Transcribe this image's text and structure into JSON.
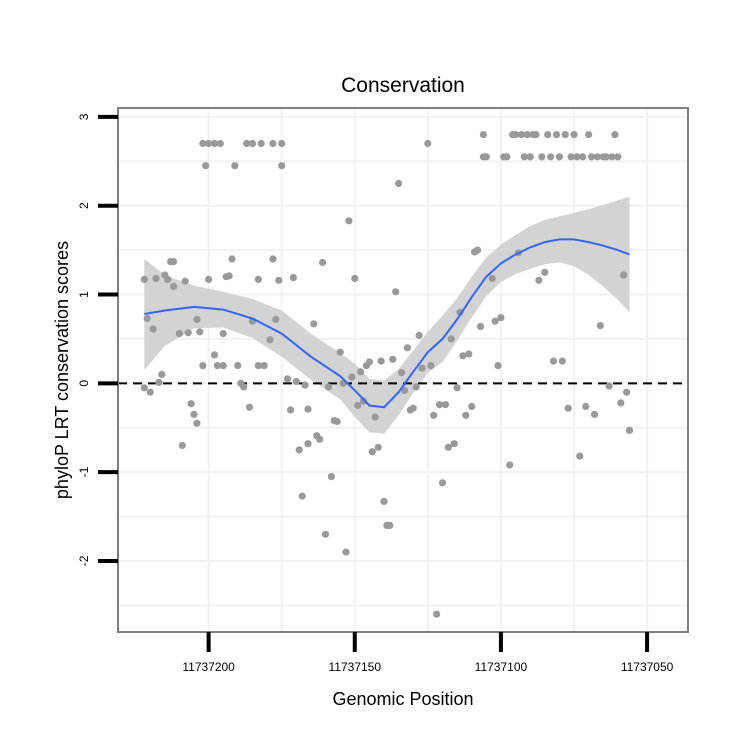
{
  "chart_data": {
    "type": "scatter",
    "title": "Conservation",
    "xlabel": "Genomic Position",
    "ylabel": "phyloP LRT conservation scores",
    "xlim": [
      11737231,
      11737036
    ],
    "ylim": [
      -2.8,
      3.1
    ],
    "x_reversed": true,
    "x_ticks": [
      11737200,
      11737150,
      11737100,
      11737050
    ],
    "x_tick_labels": [
      "11737200",
      "11737150",
      "11737100",
      "11737050"
    ],
    "y_ticks": [
      -2,
      -1,
      0,
      1,
      2,
      3
    ],
    "y_tick_labels": [
      "-2",
      "-1",
      "0",
      "1",
      "2",
      "3"
    ],
    "grid": true,
    "reference_line": {
      "y": 0,
      "style": "dashed"
    },
    "colors": {
      "points": "#999999",
      "smooth": "#3366ff",
      "band": "#d3d3d3",
      "grid": "#f2f2f2",
      "border": "#7f7f7f",
      "refline": "#000000"
    },
    "series": [
      {
        "type": "scatter",
        "points": [
          [
            11737222,
            -0.05
          ],
          [
            11737222,
            1.17
          ],
          [
            11737221,
            0.73
          ],
          [
            11737220,
            -0.1
          ],
          [
            11737219,
            0.61
          ],
          [
            11737218,
            1.18
          ],
          [
            11737217,
            0.01
          ],
          [
            11737216,
            0.1
          ],
          [
            11737215,
            1.22
          ],
          [
            11737214,
            1.17
          ],
          [
            11737213,
            1.37
          ],
          [
            11737212,
            1.37
          ],
          [
            11737212,
            1.09
          ],
          [
            11737210,
            0.56
          ],
          [
            11737209,
            -0.7
          ],
          [
            11737208,
            1.15
          ],
          [
            11737207,
            0.57
          ],
          [
            11737206,
            -0.23
          ],
          [
            11737205,
            -0.35
          ],
          [
            11737204,
            -0.45
          ],
          [
            11737204,
            0.72
          ],
          [
            11737203,
            0.58
          ],
          [
            11737202,
            0.2
          ],
          [
            11737202,
            2.7
          ],
          [
            11737201,
            2.45
          ],
          [
            11737200,
            2.7
          ],
          [
            11737200,
            1.17
          ],
          [
            11737198,
            2.7
          ],
          [
            11737198,
            0.32
          ],
          [
            11737197,
            0.2
          ],
          [
            11737196,
            2.7
          ],
          [
            11737195,
            0.56
          ],
          [
            11737195,
            0.2
          ],
          [
            11737194,
            1.2
          ],
          [
            11737193,
            1.21
          ],
          [
            11737192,
            1.4
          ],
          [
            11737191,
            2.45
          ],
          [
            11737190,
            0.2
          ],
          [
            11737189,
            0.0
          ],
          [
            11737188,
            -0.04
          ],
          [
            11737187,
            2.7
          ],
          [
            11737186,
            -0.27
          ],
          [
            11737185,
            0.7
          ],
          [
            11737185,
            2.7
          ],
          [
            11737183,
            1.17
          ],
          [
            11737183,
            0.2
          ],
          [
            11737182,
            2.7
          ],
          [
            11737181,
            0.2
          ],
          [
            11737179,
            0.49
          ],
          [
            11737178,
            1.4
          ],
          [
            11737178,
            2.7
          ],
          [
            11737177,
            0.72
          ],
          [
            11737176,
            1.16
          ],
          [
            11737175,
            2.45
          ],
          [
            11737175,
            2.7
          ],
          [
            11737173,
            0.05
          ],
          [
            11737172,
            -0.3
          ],
          [
            11737171,
            1.19
          ],
          [
            11737170,
            0.02
          ],
          [
            11737169,
            -0.75
          ],
          [
            11737168,
            -1.27
          ],
          [
            11737167,
            -0.02
          ],
          [
            11737166,
            -0.68
          ],
          [
            11737166,
            -0.29
          ],
          [
            11737164,
            0.67
          ],
          [
            11737163,
            -0.59
          ],
          [
            11737162,
            -0.63
          ],
          [
            11737161,
            1.36
          ],
          [
            11737160,
            -1.7
          ],
          [
            11737159,
            -0.04
          ],
          [
            11737158,
            -1.05
          ],
          [
            11737157,
            -0.42
          ],
          [
            11737156,
            -0.43
          ],
          [
            11737155,
            0.35
          ],
          [
            11737154,
            0.0
          ],
          [
            11737153,
            -1.9
          ],
          [
            11737152,
            1.83
          ],
          [
            11737151,
            0.07
          ],
          [
            11737150,
            1.18
          ],
          [
            11737149,
            -0.25
          ],
          [
            11737148,
            0.13
          ],
          [
            11737147,
            -0.2
          ],
          [
            11737146,
            0.2
          ],
          [
            11737145,
            0.24
          ],
          [
            11737144,
            -0.77
          ],
          [
            11737143,
            -0.38
          ],
          [
            11737142,
            -0.72
          ],
          [
            11737141,
            0.25
          ],
          [
            11737140,
            -1.33
          ],
          [
            11737139,
            -1.6
          ],
          [
            11737138,
            -1.6
          ],
          [
            11737137,
            0.27
          ],
          [
            11737136,
            1.03
          ],
          [
            11737135,
            2.25
          ],
          [
            11737134,
            0.12
          ],
          [
            11737133,
            -0.08
          ],
          [
            11737132,
            0.4
          ],
          [
            11737131,
            -0.3
          ],
          [
            11737130,
            -0.28
          ],
          [
            11737129,
            -0.04
          ],
          [
            11737128,
            0.54
          ],
          [
            11737127,
            0.17
          ],
          [
            11737125,
            2.7
          ],
          [
            11737124,
            0.2
          ],
          [
            11737123,
            -0.36
          ],
          [
            11737122,
            -2.6
          ],
          [
            11737121,
            -0.24
          ],
          [
            11737120,
            -1.12
          ],
          [
            11737119,
            -0.24
          ],
          [
            11737118,
            -0.72
          ],
          [
            11737117,
            0.5
          ],
          [
            11737116,
            -0.68
          ],
          [
            11737115,
            -0.05
          ],
          [
            11737114,
            0.8
          ],
          [
            11737113,
            0.31
          ],
          [
            11737112,
            -0.36
          ],
          [
            11737111,
            0.33
          ],
          [
            11737110,
            -0.26
          ],
          [
            11737109,
            1.48
          ],
          [
            11737108,
            1.5
          ],
          [
            11737107,
            0.64
          ],
          [
            11737106,
            2.8
          ],
          [
            11737106,
            2.55
          ],
          [
            11737105,
            2.55
          ],
          [
            11737103,
            1.18
          ],
          [
            11737102,
            0.7
          ],
          [
            11737101,
            0.2
          ],
          [
            11737100,
            0.74
          ],
          [
            11737099,
            2.55
          ],
          [
            11737098,
            2.55
          ],
          [
            11737097,
            -0.92
          ],
          [
            11737096,
            2.8
          ],
          [
            11737095,
            2.8
          ],
          [
            11737094,
            1.47
          ],
          [
            11737093,
            2.8
          ],
          [
            11737092,
            2.55
          ],
          [
            11737091,
            2.8
          ],
          [
            11737090,
            2.55
          ],
          [
            11737089,
            2.8
          ],
          [
            11737088,
            2.8
          ],
          [
            11737087,
            1.16
          ],
          [
            11737086,
            2.55
          ],
          [
            11737085,
            1.25
          ],
          [
            11737084,
            2.8
          ],
          [
            11737083,
            2.55
          ],
          [
            11737082,
            0.25
          ],
          [
            11737081,
            2.8
          ],
          [
            11737080,
            2.55
          ],
          [
            11737079,
            0.25
          ],
          [
            11737078,
            2.8
          ],
          [
            11737077,
            -0.28
          ],
          [
            11737076,
            2.55
          ],
          [
            11737075,
            2.8
          ],
          [
            11737074,
            2.55
          ],
          [
            11737073,
            -0.82
          ],
          [
            11737072,
            2.55
          ],
          [
            11737071,
            -0.26
          ],
          [
            11737070,
            2.8
          ],
          [
            11737069,
            2.55
          ],
          [
            11737068,
            -0.35
          ],
          [
            11737067,
            2.55
          ],
          [
            11737066,
            0.65
          ],
          [
            11737065,
            2.55
          ],
          [
            11737064,
            2.55
          ],
          [
            11737063,
            -0.03
          ],
          [
            11737062,
            2.55
          ],
          [
            11737061,
            2.8
          ],
          [
            11737060,
            2.55
          ],
          [
            11737059,
            -0.22
          ],
          [
            11737058,
            1.22
          ],
          [
            11737057,
            -0.1
          ],
          [
            11737056,
            -0.53
          ]
        ]
      },
      {
        "type": "smooth",
        "fit": [
          [
            11737222,
            0.78
          ],
          [
            11737215,
            0.82
          ],
          [
            11737205,
            0.86
          ],
          [
            11737195,
            0.83
          ],
          [
            11737185,
            0.73
          ],
          [
            11737175,
            0.56
          ],
          [
            11737165,
            0.3
          ],
          [
            11737155,
            0.08
          ],
          [
            11737150,
            -0.08
          ],
          [
            11737145,
            -0.25
          ],
          [
            11737140,
            -0.27
          ],
          [
            11737135,
            -0.1
          ],
          [
            11737130,
            0.13
          ],
          [
            11737125,
            0.35
          ],
          [
            11737120,
            0.5
          ],
          [
            11737115,
            0.72
          ],
          [
            11737110,
            0.97
          ],
          [
            11737105,
            1.2
          ],
          [
            11737100,
            1.35
          ],
          [
            11737095,
            1.45
          ],
          [
            11737090,
            1.53
          ],
          [
            11737085,
            1.59
          ],
          [
            11737080,
            1.62
          ],
          [
            11737075,
            1.62
          ],
          [
            11737070,
            1.59
          ],
          [
            11737065,
            1.55
          ],
          [
            11737060,
            1.5
          ],
          [
            11737056,
            1.45
          ]
        ],
        "band_upper": [
          [
            11737222,
            1.4
          ],
          [
            11737215,
            1.22
          ],
          [
            11737205,
            1.1
          ],
          [
            11737195,
            1.03
          ],
          [
            11737185,
            0.95
          ],
          [
            11737175,
            0.82
          ],
          [
            11737165,
            0.56
          ],
          [
            11737155,
            0.34
          ],
          [
            11737150,
            0.22
          ],
          [
            11737145,
            0.05
          ],
          [
            11737140,
            0.03
          ],
          [
            11737135,
            0.16
          ],
          [
            11737130,
            0.37
          ],
          [
            11737125,
            0.58
          ],
          [
            11737120,
            0.76
          ],
          [
            11737115,
            0.96
          ],
          [
            11737110,
            1.2
          ],
          [
            11737105,
            1.42
          ],
          [
            11737100,
            1.56
          ],
          [
            11737095,
            1.67
          ],
          [
            11737090,
            1.77
          ],
          [
            11737085,
            1.84
          ],
          [
            11737080,
            1.88
          ],
          [
            11737075,
            1.92
          ],
          [
            11737070,
            1.96
          ],
          [
            11737065,
            2.01
          ],
          [
            11737060,
            2.06
          ],
          [
            11737056,
            2.1
          ]
        ],
        "band_lower": [
          [
            11737222,
            0.15
          ],
          [
            11737215,
            0.42
          ],
          [
            11737205,
            0.62
          ],
          [
            11737195,
            0.63
          ],
          [
            11737185,
            0.51
          ],
          [
            11737175,
            0.3
          ],
          [
            11737165,
            0.04
          ],
          [
            11737155,
            -0.18
          ],
          [
            11737150,
            -0.38
          ],
          [
            11737145,
            -0.55
          ],
          [
            11737140,
            -0.57
          ],
          [
            11737135,
            -0.36
          ],
          [
            11737130,
            -0.11
          ],
          [
            11737125,
            0.12
          ],
          [
            11737120,
            0.24
          ],
          [
            11737115,
            0.48
          ],
          [
            11737110,
            0.74
          ],
          [
            11737105,
            0.98
          ],
          [
            11737100,
            1.14
          ],
          [
            11737095,
            1.23
          ],
          [
            11737090,
            1.29
          ],
          [
            11737085,
            1.34
          ],
          [
            11737080,
            1.36
          ],
          [
            11737075,
            1.32
          ],
          [
            11737070,
            1.22
          ],
          [
            11737065,
            1.09
          ],
          [
            11737060,
            0.94
          ],
          [
            11737056,
            0.8
          ]
        ]
      }
    ]
  }
}
